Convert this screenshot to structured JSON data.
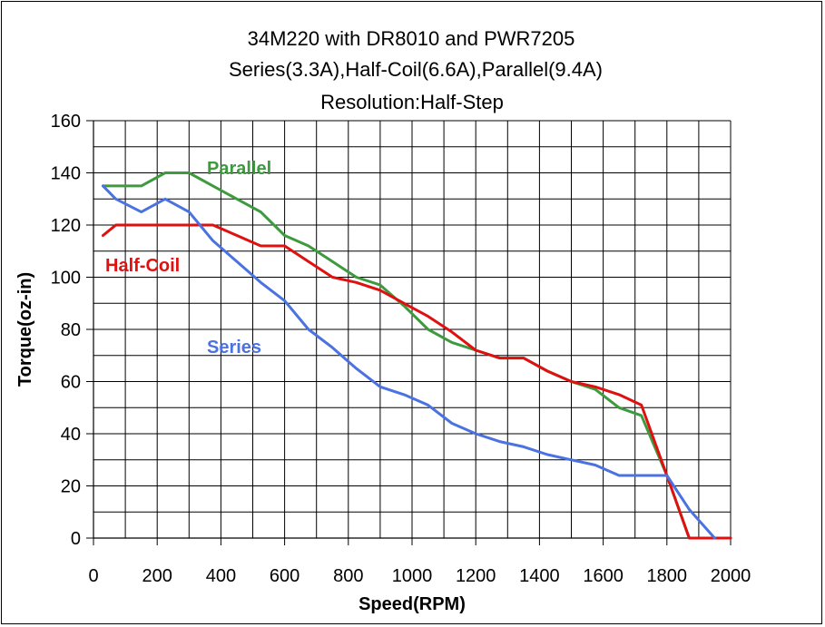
{
  "chart_data": {
    "type": "line",
    "title_lines": [
      "34M220 with DR8010 and PWR7205",
      "Series(3.3A),Half-Coil(6.6A),Parallel(9.4A)",
      "Resolution:Half-Step"
    ],
    "xlabel": "Speed(RPM)",
    "ylabel": "Torque(oz-in)",
    "xlim": [
      0,
      2000
    ],
    "ylim": [
      0,
      160
    ],
    "x_ticks": [
      0,
      200,
      400,
      600,
      800,
      1000,
      1200,
      1400,
      1600,
      1800,
      2000
    ],
    "y_ticks": [
      0,
      20,
      40,
      60,
      80,
      100,
      120,
      140,
      160
    ],
    "grid": true,
    "legend": "inline labels",
    "series": [
      {
        "name": "Parallel",
        "color": "#3e9a3e",
        "x": [
          30,
          70,
          150,
          225,
          300,
          375,
          450,
          525,
          600,
          675,
          750,
          825,
          900,
          975,
          1050,
          1125,
          1200,
          1275,
          1350,
          1425,
          1500,
          1575,
          1650,
          1720,
          1800,
          1870,
          1950,
          2000
        ],
        "y": [
          135,
          135,
          135,
          140,
          140,
          135,
          130,
          125,
          116,
          112,
          106,
          100,
          97,
          89,
          80,
          75,
          72,
          69,
          69,
          64,
          60,
          57,
          50,
          47,
          24,
          0,
          0,
          0
        ]
      },
      {
        "name": "Half-Coil",
        "color": "#e01010",
        "x": [
          30,
          70,
          150,
          225,
          300,
          375,
          450,
          525,
          600,
          675,
          750,
          825,
          900,
          975,
          1050,
          1125,
          1200,
          1275,
          1350,
          1425,
          1500,
          1575,
          1650,
          1720,
          1800,
          1870,
          1950,
          2000
        ],
        "y": [
          116,
          120,
          120,
          120,
          120,
          120,
          116,
          112,
          112,
          106,
          100,
          98,
          95,
          90,
          85,
          79,
          72,
          69,
          69,
          64,
          60,
          58,
          55,
          51,
          24,
          0,
          0,
          0
        ]
      },
      {
        "name": "Series",
        "color": "#4a72e0",
        "x": [
          30,
          70,
          150,
          225,
          300,
          375,
          450,
          525,
          600,
          675,
          750,
          825,
          900,
          975,
          1050,
          1125,
          1200,
          1275,
          1350,
          1425,
          1500,
          1575,
          1650,
          1720,
          1800,
          1870,
          1950
        ],
        "y": [
          135,
          130,
          125,
          130,
          125,
          114,
          106,
          98,
          91,
          80,
          73,
          65,
          58,
          55,
          51,
          44,
          40,
          37,
          35,
          32,
          30,
          28,
          24,
          24,
          24,
          11,
          0
        ]
      }
    ]
  }
}
